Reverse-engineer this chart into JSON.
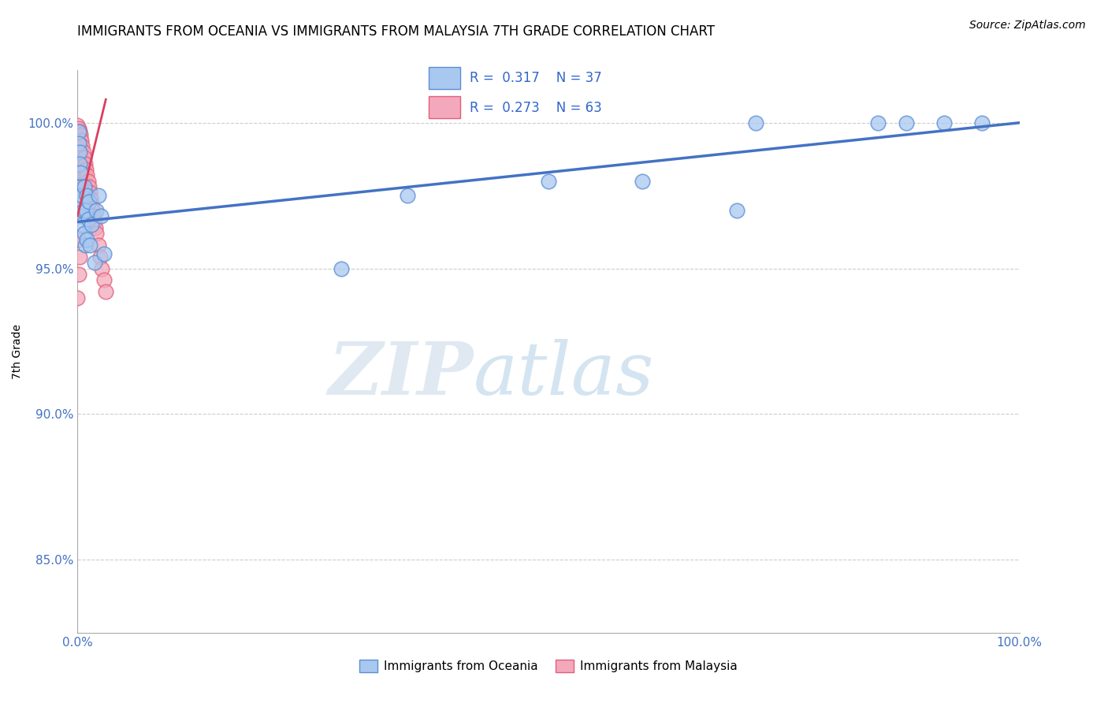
{
  "title": "IMMIGRANTS FROM OCEANIA VS IMMIGRANTS FROM MALAYSIA 7TH GRADE CORRELATION CHART",
  "source": "Source: ZipAtlas.com",
  "ylabel": "7th Grade",
  "xlim": [
    0.0,
    1.0
  ],
  "ylim": [
    0.825,
    1.018
  ],
  "xticks": [
    0.0,
    0.2,
    0.4,
    0.6,
    0.8,
    1.0
  ],
  "xticklabels": [
    "0.0%",
    "",
    "",
    "",
    "",
    "100.0%"
  ],
  "yticks": [
    0.85,
    0.9,
    0.95,
    1.0
  ],
  "yticklabels": [
    "85.0%",
    "90.0%",
    "95.0%",
    "100.0%"
  ],
  "blue_color": "#A8C8F0",
  "pink_color": "#F4A8BC",
  "blue_edge_color": "#5B8FD4",
  "pink_edge_color": "#E0607A",
  "blue_line_color": "#4472C4",
  "pink_line_color": "#D94060",
  "R_blue": 0.317,
  "N_blue": 37,
  "R_pink": 0.273,
  "N_pink": 63,
  "watermark_zip": "ZIP",
  "watermark_atlas": "atlas",
  "blue_scatter_x": [
    0.001,
    0.001,
    0.002,
    0.002,
    0.003,
    0.003,
    0.003,
    0.004,
    0.004,
    0.005,
    0.005,
    0.006,
    0.007,
    0.007,
    0.008,
    0.009,
    0.01,
    0.01,
    0.011,
    0.012,
    0.013,
    0.015,
    0.018,
    0.02,
    0.022,
    0.025,
    0.028,
    0.28,
    0.5,
    0.72,
    0.85,
    0.92,
    0.35,
    0.6,
    0.7,
    0.88,
    0.96
  ],
  "blue_scatter_y": [
    0.997,
    0.993,
    0.99,
    0.986,
    0.983,
    0.978,
    0.975,
    0.972,
    0.968,
    0.975,
    0.965,
    0.97,
    0.978,
    0.962,
    0.958,
    0.97,
    0.975,
    0.96,
    0.967,
    0.973,
    0.958,
    0.965,
    0.952,
    0.97,
    0.975,
    0.968,
    0.955,
    0.95,
    0.98,
    1.0,
    1.0,
    1.0,
    0.975,
    0.98,
    0.97,
    1.0,
    1.0
  ],
  "pink_scatter_x": [
    0.0,
    0.0,
    0.0,
    0.0,
    0.0,
    0.0,
    0.0,
    0.0,
    0.001,
    0.001,
    0.001,
    0.001,
    0.001,
    0.001,
    0.001,
    0.001,
    0.001,
    0.002,
    0.002,
    0.002,
    0.002,
    0.002,
    0.003,
    0.003,
    0.003,
    0.003,
    0.004,
    0.004,
    0.004,
    0.005,
    0.005,
    0.005,
    0.006,
    0.006,
    0.006,
    0.007,
    0.007,
    0.008,
    0.008,
    0.009,
    0.009,
    0.01,
    0.01,
    0.011,
    0.012,
    0.013,
    0.014,
    0.015,
    0.016,
    0.017,
    0.018,
    0.019,
    0.02,
    0.022,
    0.024,
    0.026,
    0.028,
    0.03,
    0.0,
    0.001,
    0.002,
    0.001,
    0.0
  ],
  "pink_scatter_y": [
    0.999,
    0.997,
    0.995,
    0.993,
    0.991,
    0.989,
    0.987,
    0.985,
    0.998,
    0.996,
    0.994,
    0.992,
    0.988,
    0.984,
    0.98,
    0.976,
    0.972,
    0.997,
    0.993,
    0.989,
    0.985,
    0.981,
    0.996,
    0.992,
    0.986,
    0.98,
    0.994,
    0.988,
    0.982,
    0.992,
    0.986,
    0.979,
    0.99,
    0.984,
    0.977,
    0.988,
    0.982,
    0.986,
    0.979,
    0.984,
    0.977,
    0.982,
    0.975,
    0.98,
    0.978,
    0.976,
    0.974,
    0.972,
    0.97,
    0.968,
    0.966,
    0.964,
    0.962,
    0.958,
    0.954,
    0.95,
    0.946,
    0.942,
    0.968,
    0.96,
    0.954,
    0.948,
    0.94
  ],
  "blue_trendline_start_x": 0.0,
  "blue_trendline_start_y": 0.966,
  "blue_trendline_end_x": 1.0,
  "blue_trendline_end_y": 1.0,
  "pink_trendline_start_x": 0.0,
  "pink_trendline_start_y": 0.968,
  "pink_trendline_end_x": 0.03,
  "pink_trendline_end_y": 1.008
}
